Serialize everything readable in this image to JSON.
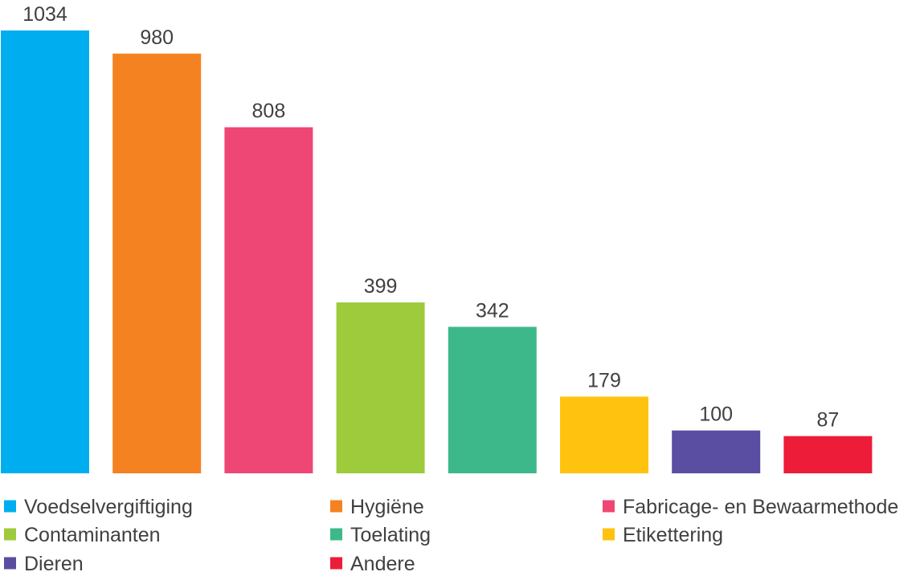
{
  "chart_data": {
    "type": "bar",
    "title": "",
    "xlabel": "",
    "ylabel": "",
    "ylim": [
      0,
      1034
    ],
    "grid": false,
    "legend_position": "bottom",
    "categories": [
      "Voedselvergiftiging",
      "Hygiëne",
      "Fabricage- en Bewaarmethode",
      "Contaminanten",
      "Toelating",
      "Etikettering",
      "Dieren",
      "Andere"
    ],
    "values": [
      1034,
      980,
      808,
      399,
      342,
      179,
      100,
      87
    ],
    "colors": [
      "#00aeef",
      "#f58220",
      "#ef4775",
      "#9dcb3c",
      "#3db88b",
      "#ffc20e",
      "#5a4ea2",
      "#ed1c39"
    ]
  }
}
